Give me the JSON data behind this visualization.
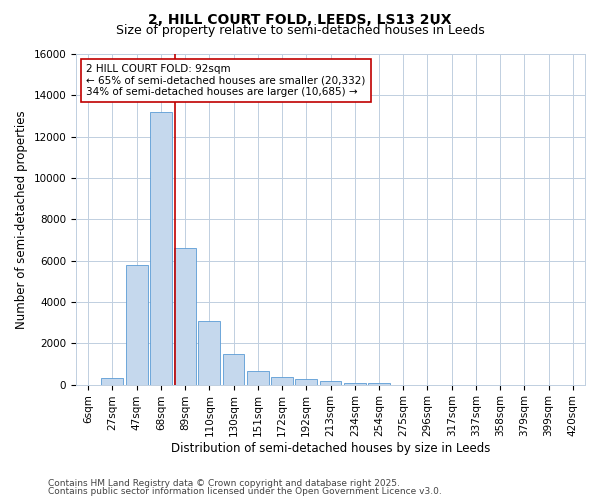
{
  "title_line1": "2, HILL COURT FOLD, LEEDS, LS13 2UX",
  "title_line2": "Size of property relative to semi-detached houses in Leeds",
  "xlabel": "Distribution of semi-detached houses by size in Leeds",
  "ylabel": "Number of semi-detached properties",
  "categories": [
    "6sqm",
    "27sqm",
    "47sqm",
    "68sqm",
    "89sqm",
    "110sqm",
    "130sqm",
    "151sqm",
    "172sqm",
    "192sqm",
    "213sqm",
    "234sqm",
    "254sqm",
    "275sqm",
    "296sqm",
    "317sqm",
    "337sqm",
    "358sqm",
    "379sqm",
    "399sqm",
    "420sqm"
  ],
  "values": [
    0,
    300,
    5800,
    13200,
    6600,
    3100,
    1500,
    650,
    350,
    250,
    150,
    100,
    100,
    0,
    0,
    0,
    0,
    0,
    0,
    0,
    0
  ],
  "bar_color": "#c5d8ed",
  "bar_edge_color": "#5b9bd5",
  "vline_x": 3.57,
  "vline_color": "#c00000",
  "annotation_text": "2 HILL COURT FOLD: 92sqm\n← 65% of semi-detached houses are smaller (20,332)\n34% of semi-detached houses are larger (10,685) →",
  "annotation_box_color": "#ffffff",
  "annotation_box_edge": "#c00000",
  "ylim": [
    0,
    16000
  ],
  "yticks": [
    0,
    2000,
    4000,
    6000,
    8000,
    10000,
    12000,
    14000,
    16000
  ],
  "plot_bg_color": "#ffffff",
  "fig_bg_color": "#ffffff",
  "grid_color": "#c0cfe0",
  "footer_line1": "Contains HM Land Registry data © Crown copyright and database right 2025.",
  "footer_line2": "Contains public sector information licensed under the Open Government Licence v3.0.",
  "title_fontsize": 10,
  "subtitle_fontsize": 9,
  "axis_label_fontsize": 8.5,
  "tick_fontsize": 7.5,
  "annotation_fontsize": 7.5,
  "footer_fontsize": 6.5
}
